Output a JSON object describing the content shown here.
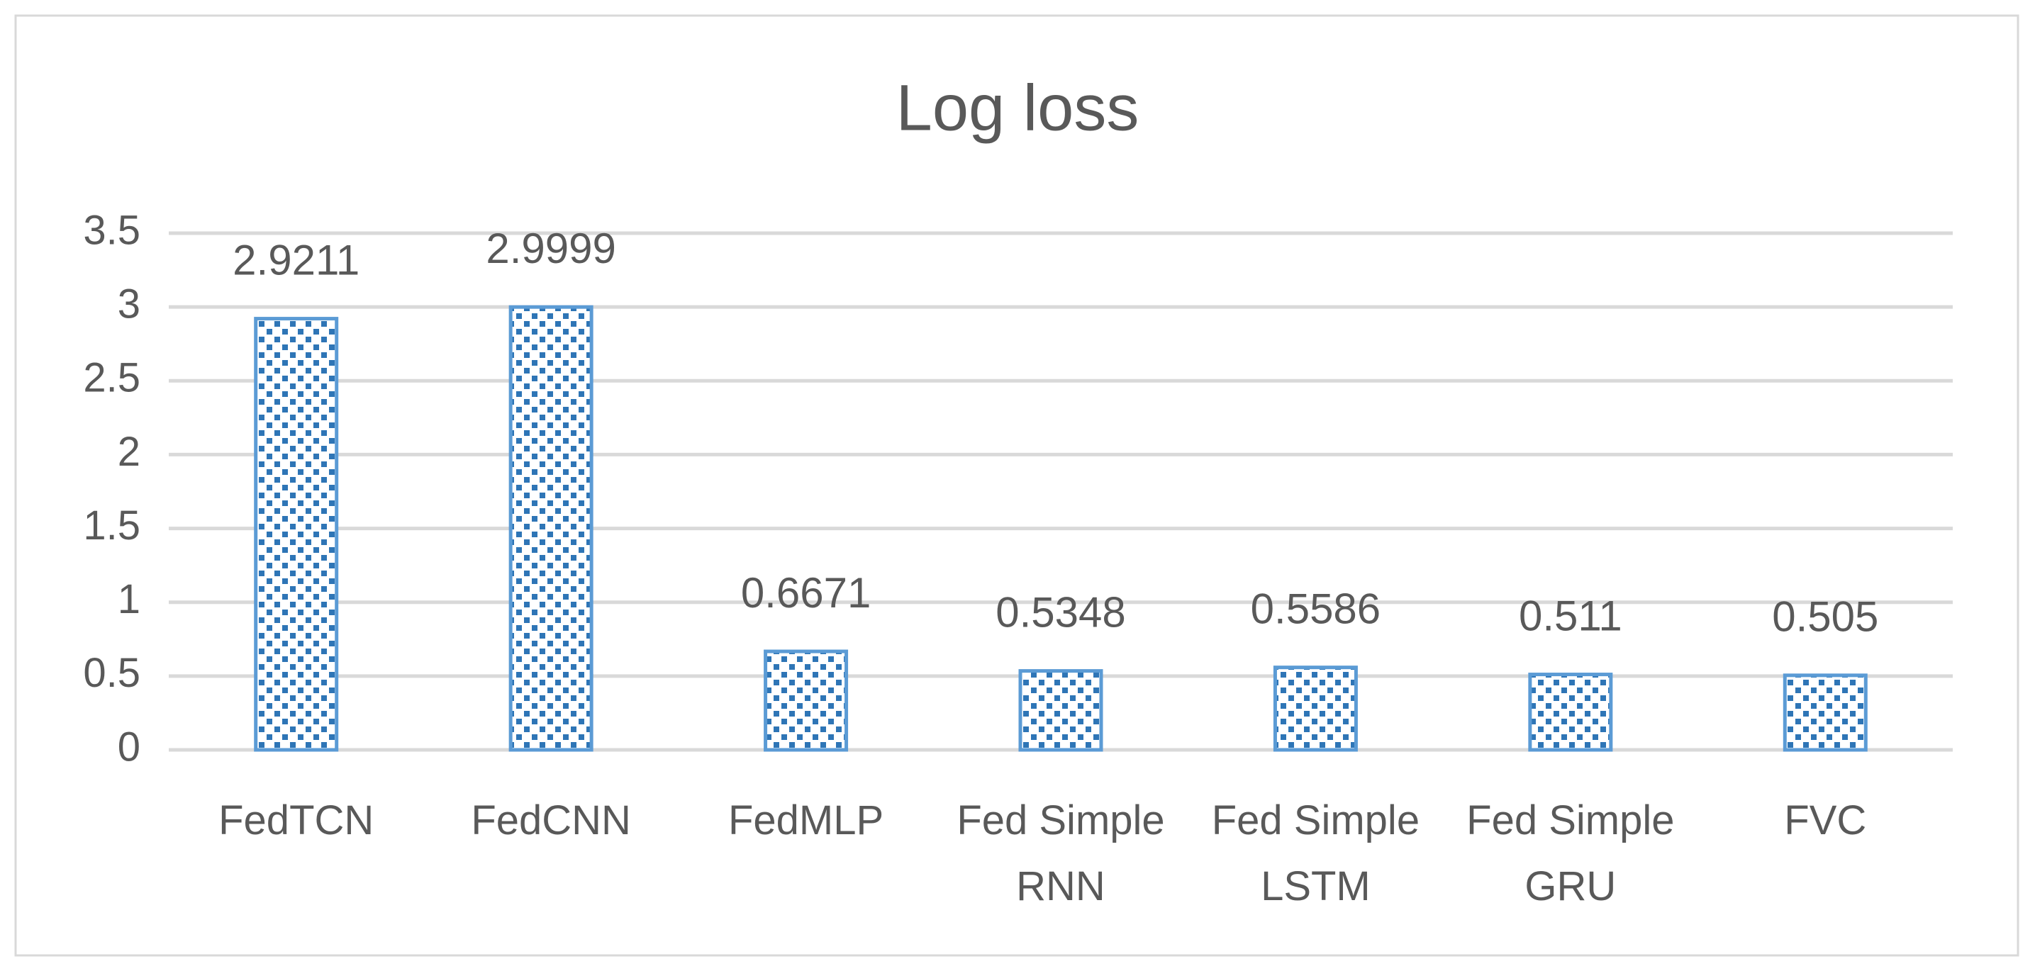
{
  "chart_data": {
    "type": "bar",
    "title": "Log loss",
    "categories": [
      "FedTCN",
      "FedCNN",
      "FedMLP",
      "Fed Simple RNN",
      "Fed Simple LSTM",
      "Fed Simple GRU",
      "FVC"
    ],
    "values": [
      2.9211,
      2.9999,
      0.6671,
      0.5348,
      0.5586,
      0.511,
      0.505
    ],
    "color": "#2e75b6",
    "ylim": [
      0,
      3.5
    ],
    "yticks": [
      0,
      0.5,
      1,
      1.5,
      2,
      2.5,
      3,
      3.5
    ],
    "grid": true
  }
}
